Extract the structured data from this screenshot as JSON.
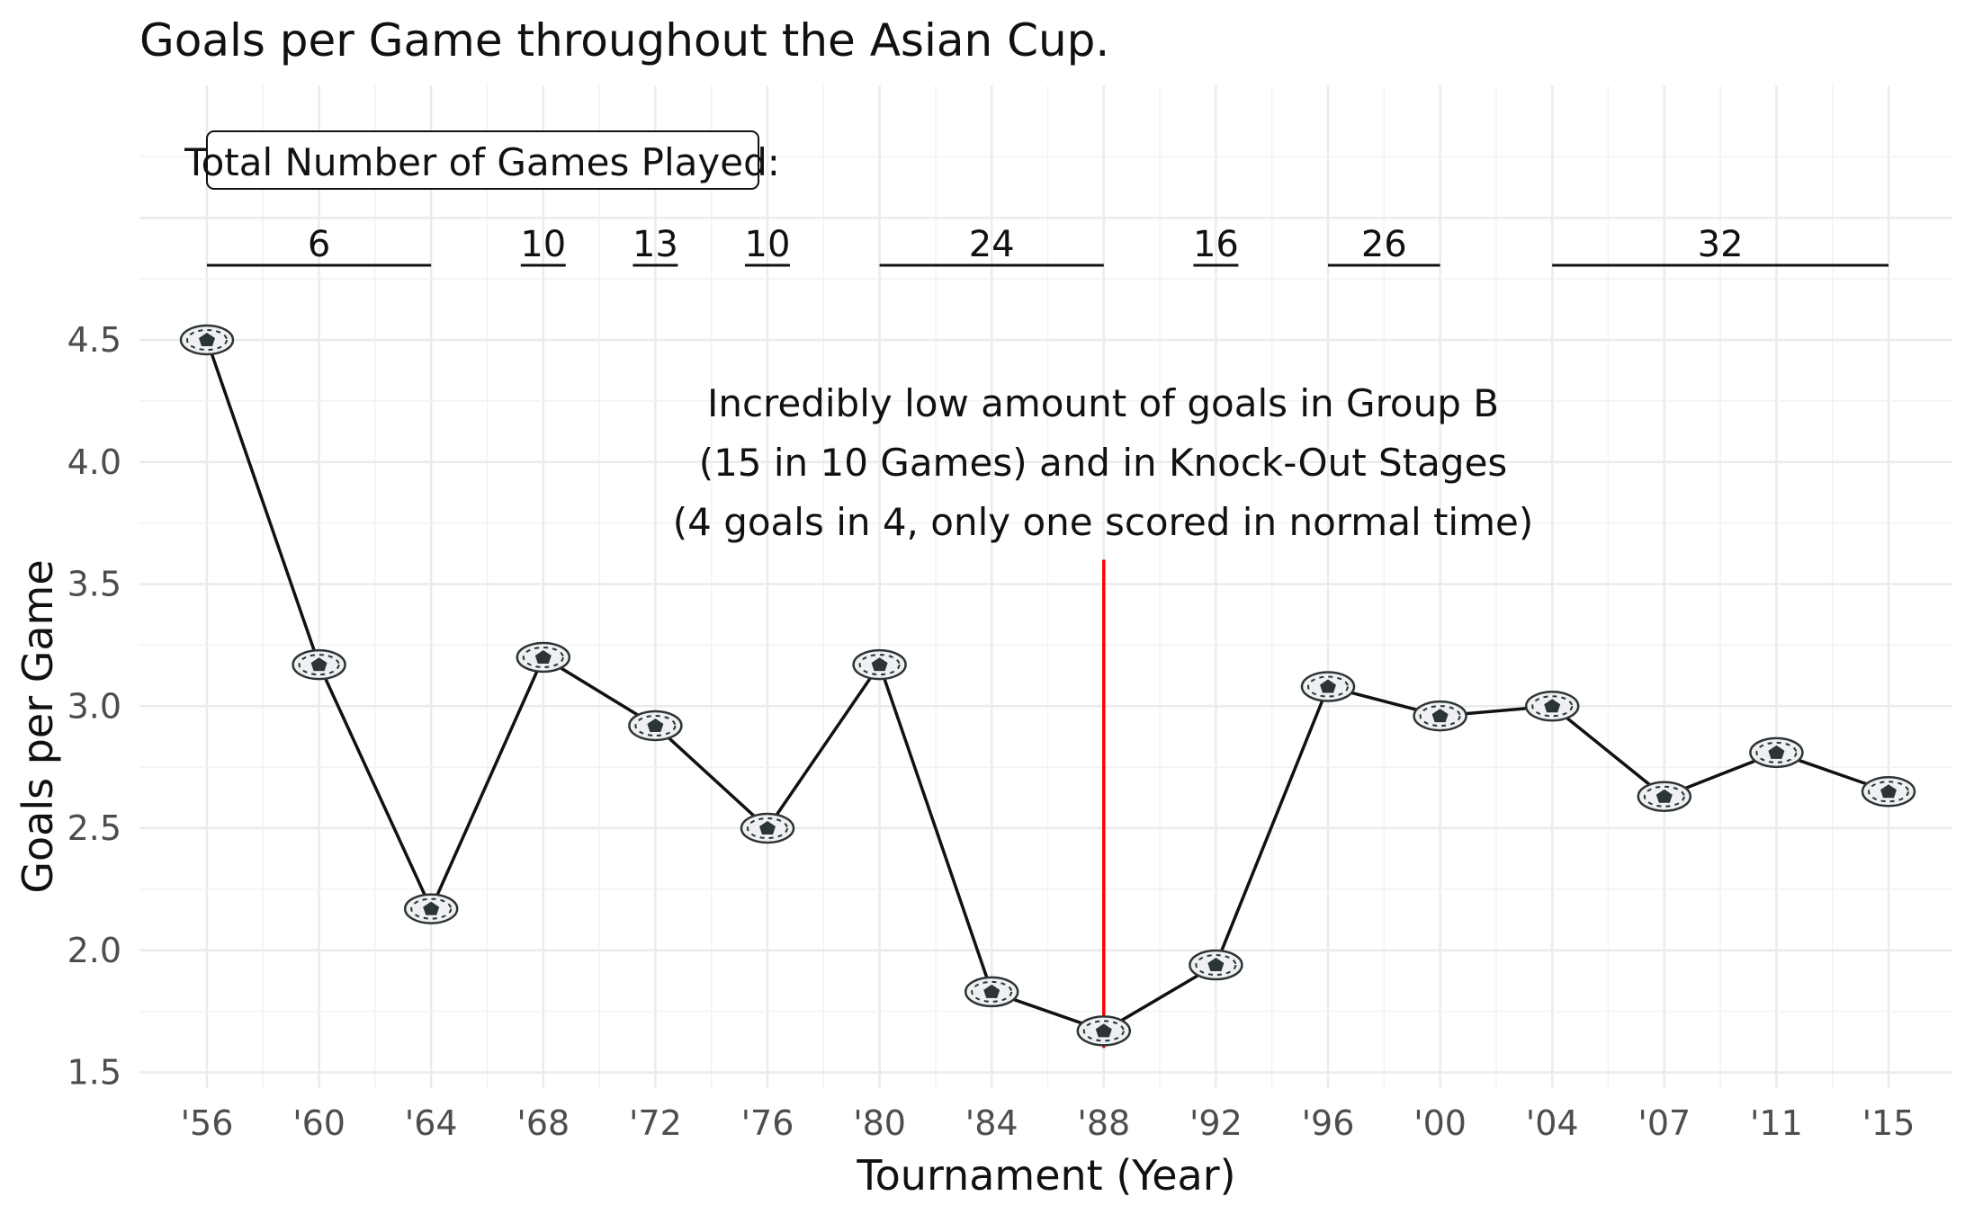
{
  "chart_data": {
    "type": "line",
    "title": "Goals per Game throughout the Asian Cup.",
    "xlabel": "Tournament (Year)",
    "ylabel": "Goals per Game",
    "ylim": [
      1.45,
      4.55
    ],
    "yticks": [
      "1.5",
      "2.0",
      "2.5",
      "3.0",
      "3.5",
      "4.0",
      "4.5"
    ],
    "categories": [
      "'56",
      "'60",
      "'64",
      "'68",
      "'72",
      "'76",
      "'80",
      "'84",
      "'88",
      "'92",
      "'96",
      "'00",
      "'04",
      "'07",
      "'11",
      "'15"
    ],
    "values": [
      4.5,
      3.17,
      2.17,
      3.2,
      2.92,
      2.5,
      3.17,
      1.83,
      1.67,
      1.94,
      3.08,
      2.96,
      3.0,
      2.63,
      2.81,
      2.65
    ],
    "marker": "soccer-ball-icon",
    "line_color": "#111111",
    "grid": true,
    "games_box_label": "Total Number of Games Played:",
    "games_played": [
      {
        "label": "6",
        "from": 0,
        "to": 2
      },
      {
        "label": "10",
        "from": 3,
        "to": 3
      },
      {
        "label": "13",
        "from": 4,
        "to": 4
      },
      {
        "label": "10",
        "from": 5,
        "to": 5
      },
      {
        "label": "24",
        "from": 6,
        "to": 8
      },
      {
        "label": "16",
        "from": 9,
        "to": 9
      },
      {
        "label": "26",
        "from": 10,
        "to": 11
      },
      {
        "label": "32",
        "from": 12,
        "to": 15
      }
    ],
    "annotation": {
      "lines": [
        "Incredibly low amount of goals in Group B",
        "(15 in 10 Games) and in Knock-Out Stages",
        "(4 goals in 4, only one scored in normal time)"
      ],
      "at_category": 8,
      "y_from": 1.6,
      "y_to": 3.6,
      "color": "#ff0000"
    }
  }
}
